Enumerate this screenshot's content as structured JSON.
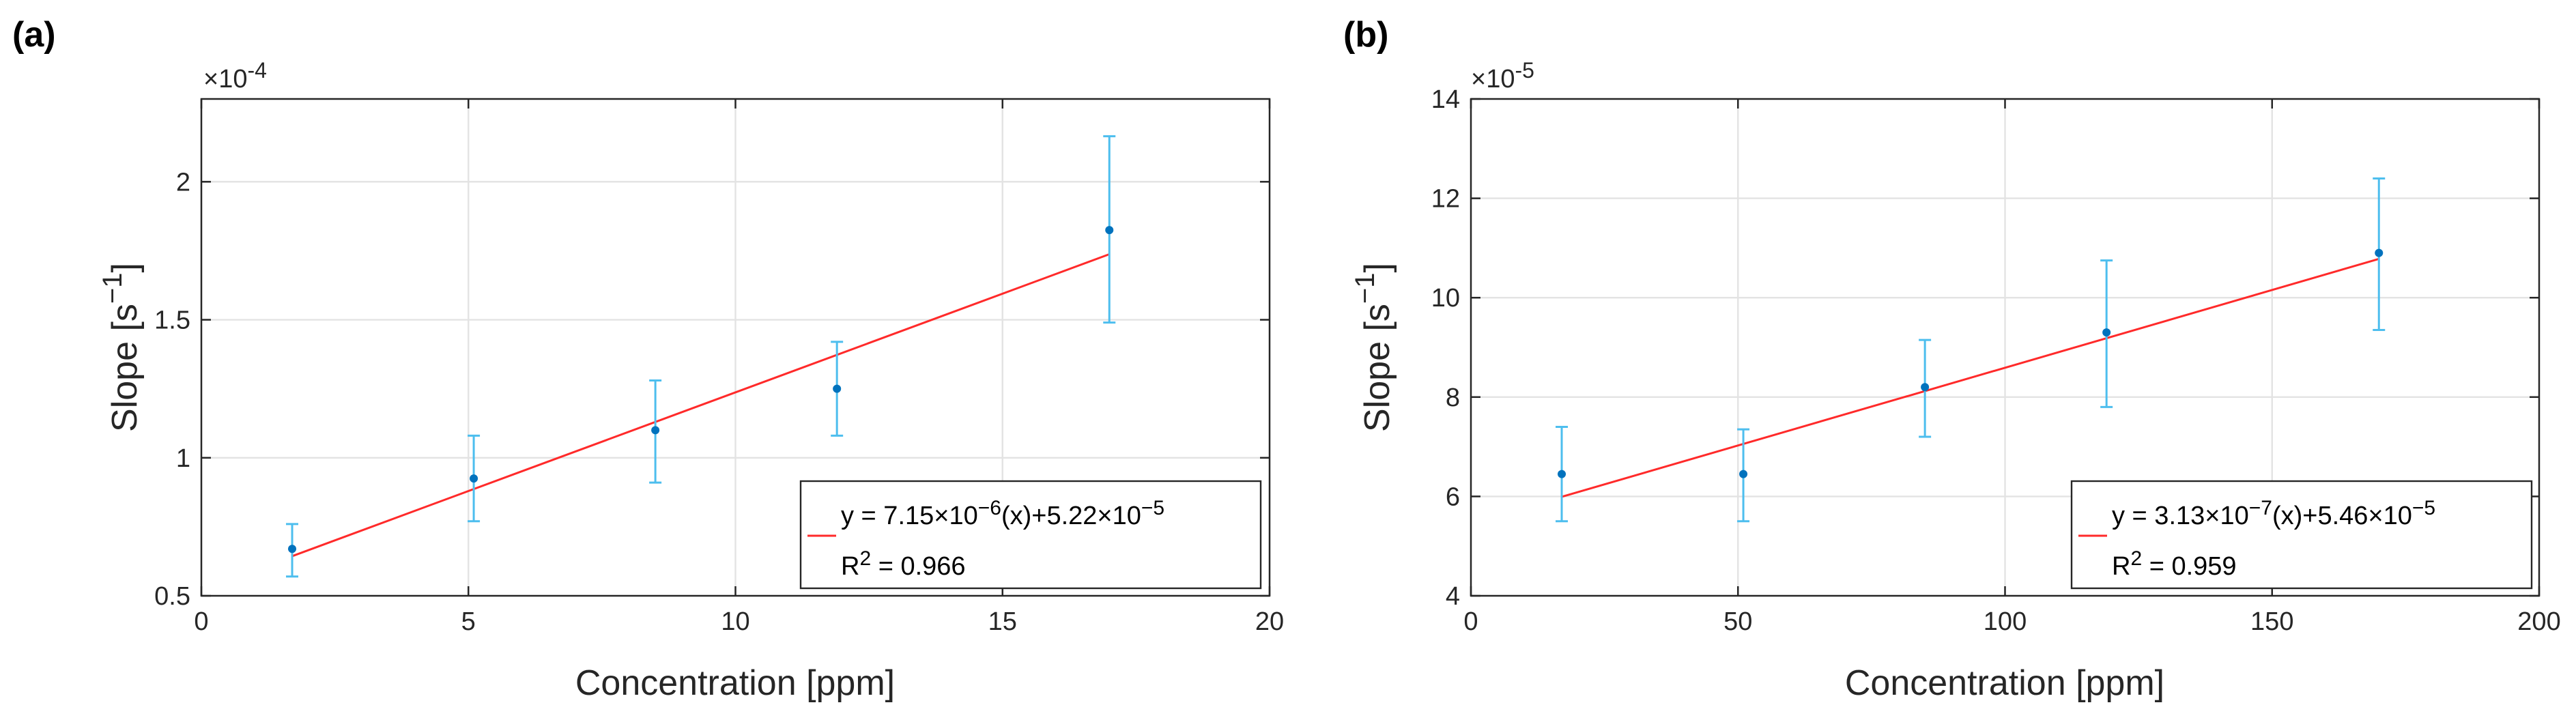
{
  "chart_data": [
    {
      "type": "scatter",
      "panel_label": "(a)",
      "xlabel": "Concentration [ppm]",
      "ylabel_base": "Slope [s",
      "ylabel_sup": "−1",
      "ylabel_end": "]",
      "exponent_label": "×10",
      "exponent_power": "-4",
      "xlim": [
        0,
        20
      ],
      "ylim": [
        0.5,
        2.3
      ],
      "xticks": [
        0,
        5,
        10,
        15,
        20
      ],
      "yticks": [
        0.5,
        1,
        1.5,
        2
      ],
      "x_tick_labels": [
        "0",
        "5",
        "10",
        "15",
        "20"
      ],
      "y_tick_labels": [
        "0.5",
        "1",
        "1.5",
        "2"
      ],
      "grid": true,
      "points": [
        {
          "x": 1.7,
          "y": 0.67,
          "err_low": 0.57,
          "err_high": 0.76
        },
        {
          "x": 5.1,
          "y": 0.925,
          "err_low": 0.77,
          "err_high": 1.08
        },
        {
          "x": 8.5,
          "y": 1.1,
          "err_low": 0.91,
          "err_high": 1.28
        },
        {
          "x": 11.9,
          "y": 1.25,
          "err_low": 1.08,
          "err_high": 1.42
        },
        {
          "x": 17.0,
          "y": 1.825,
          "err_low": 1.49,
          "err_high": 2.165
        }
      ],
      "fit": {
        "x": [
          1.7,
          17.0
        ],
        "slope": 0.0715,
        "intercept": 0.522
      },
      "legend": {
        "equation_prefix": "y = 7.15×10",
        "equation_exp1": "−6",
        "equation_mid": "(x)+5.22×10",
        "equation_exp2": "−5",
        "r2_prefix": "R",
        "r2_sup": "2",
        "r2_value": " = 0.966",
        "placement": "bottom-right"
      },
      "colors": {
        "points": "#0072bd",
        "errorbars": "#4dbeee",
        "fit": "#ff2a2a"
      }
    },
    {
      "type": "scatter",
      "panel_label": "(b)",
      "xlabel": "Concentration [ppm]",
      "ylabel_base": "Slope [s",
      "ylabel_sup": "−1",
      "ylabel_end": "]",
      "exponent_label": "×10",
      "exponent_power": "-5",
      "xlim": [
        0,
        200
      ],
      "ylim": [
        4,
        14
      ],
      "xticks": [
        0,
        50,
        100,
        150,
        200
      ],
      "yticks": [
        4,
        6,
        8,
        10,
        12,
        14
      ],
      "x_tick_labels": [
        "0",
        "50",
        "100",
        "150",
        "200"
      ],
      "y_tick_labels": [
        "4",
        "6",
        "8",
        "10",
        "12",
        "14"
      ],
      "grid": true,
      "points": [
        {
          "x": 17,
          "y": 6.45,
          "err_low": 5.5,
          "err_high": 7.4
        },
        {
          "x": 51,
          "y": 6.45,
          "err_low": 5.5,
          "err_high": 7.35
        },
        {
          "x": 85,
          "y": 8.2,
          "err_low": 7.2,
          "err_high": 9.15
        },
        {
          "x": 119,
          "y": 9.3,
          "err_low": 7.8,
          "err_high": 10.75
        },
        {
          "x": 170,
          "y": 10.9,
          "err_low": 9.35,
          "err_high": 12.4
        }
      ],
      "fit": {
        "x": [
          17,
          170
        ],
        "slope": 0.0313,
        "intercept": 5.46
      },
      "legend": {
        "equation_prefix": "y = 3.13×10",
        "equation_exp1": "−7",
        "equation_mid": "(x)+5.46×10",
        "equation_exp2": "−5",
        "r2_prefix": "R",
        "r2_sup": "2",
        "r2_value": " = 0.959",
        "placement": "bottom-right"
      },
      "colors": {
        "points": "#0072bd",
        "errorbars": "#4dbeee",
        "fit": "#ff2a2a"
      }
    }
  ]
}
